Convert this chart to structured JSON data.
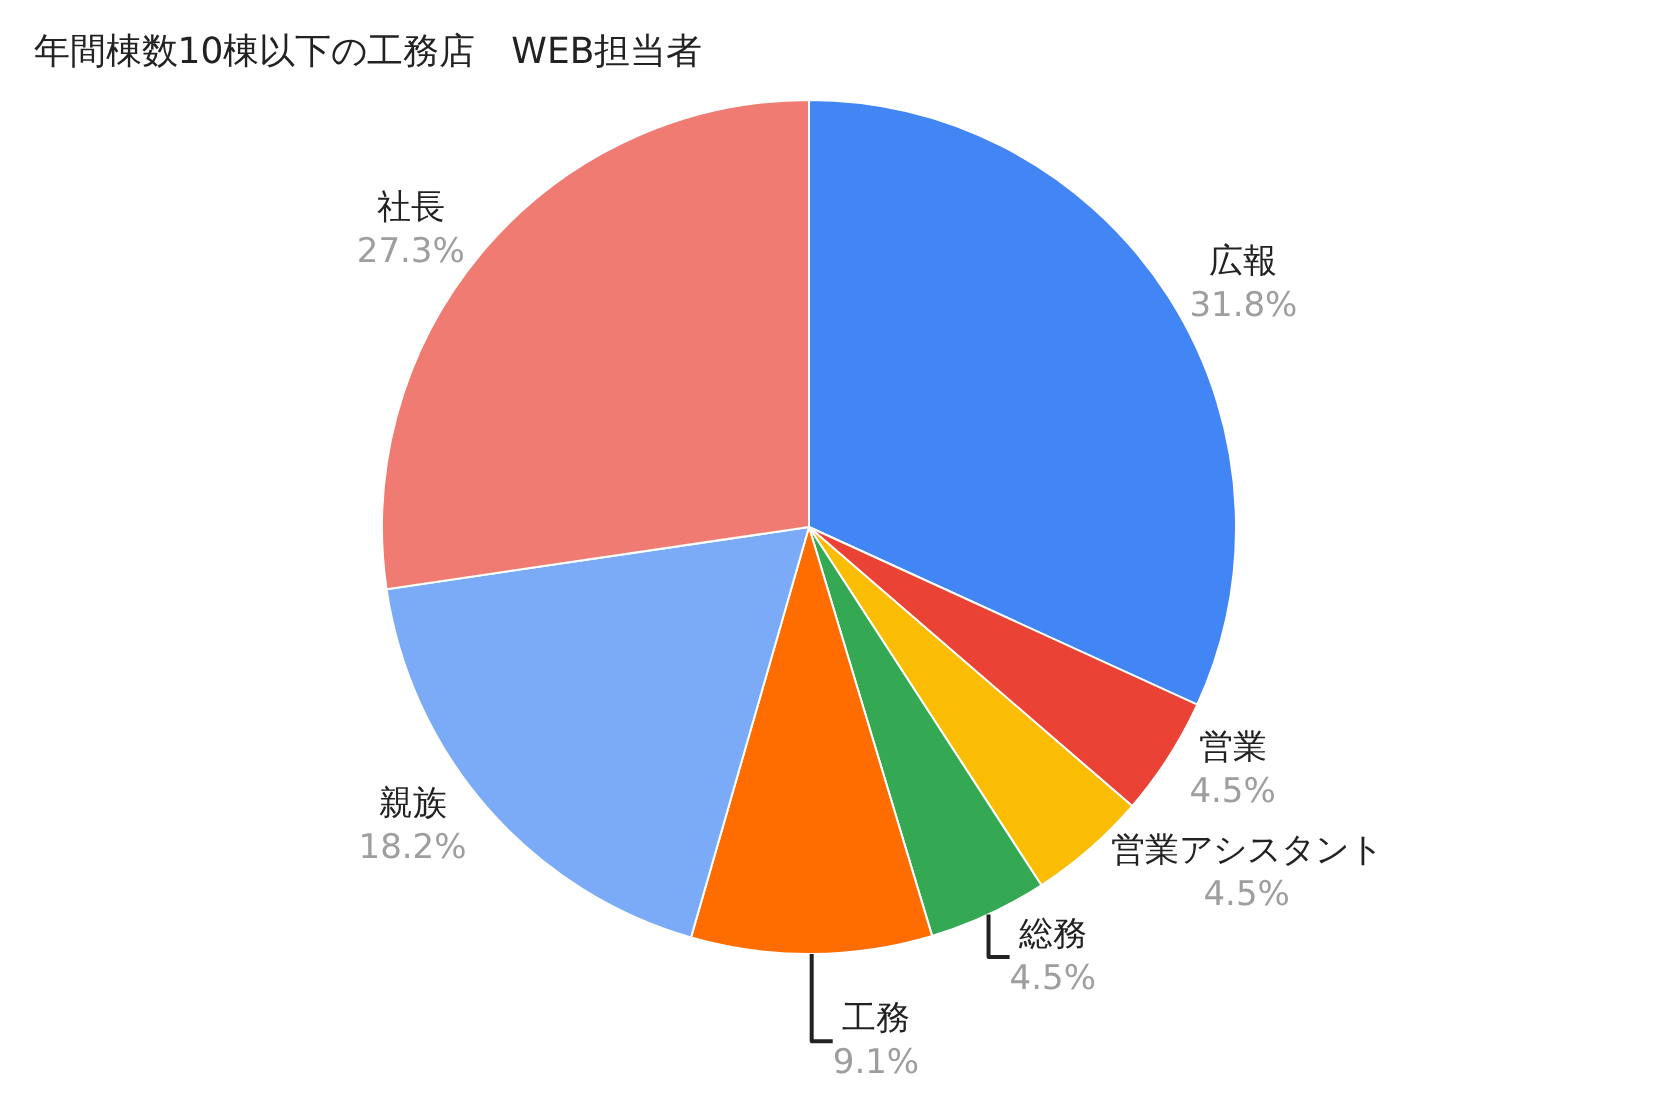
{
  "chart_data": {
    "type": "pie",
    "title": "年間棟数10棟以下の工務店　WEB担当者",
    "categories": [
      "広報",
      "営業",
      "営業アシスタント",
      "総務",
      "工務",
      "親族",
      "社長"
    ],
    "values": [
      31.8,
      4.5,
      4.5,
      4.5,
      9.1,
      18.2,
      27.3
    ],
    "colors": [
      "#4285f4",
      "#ea4335",
      "#fbbc04",
      "#34a853",
      "#ff6d01",
      "#7baaf7",
      "#f07b72"
    ],
    "value_labels": [
      "31.8%",
      "4.5%",
      "4.5%",
      "4.5%",
      "9.1%",
      "18.2%",
      "27.3%"
    ],
    "legend": false
  }
}
